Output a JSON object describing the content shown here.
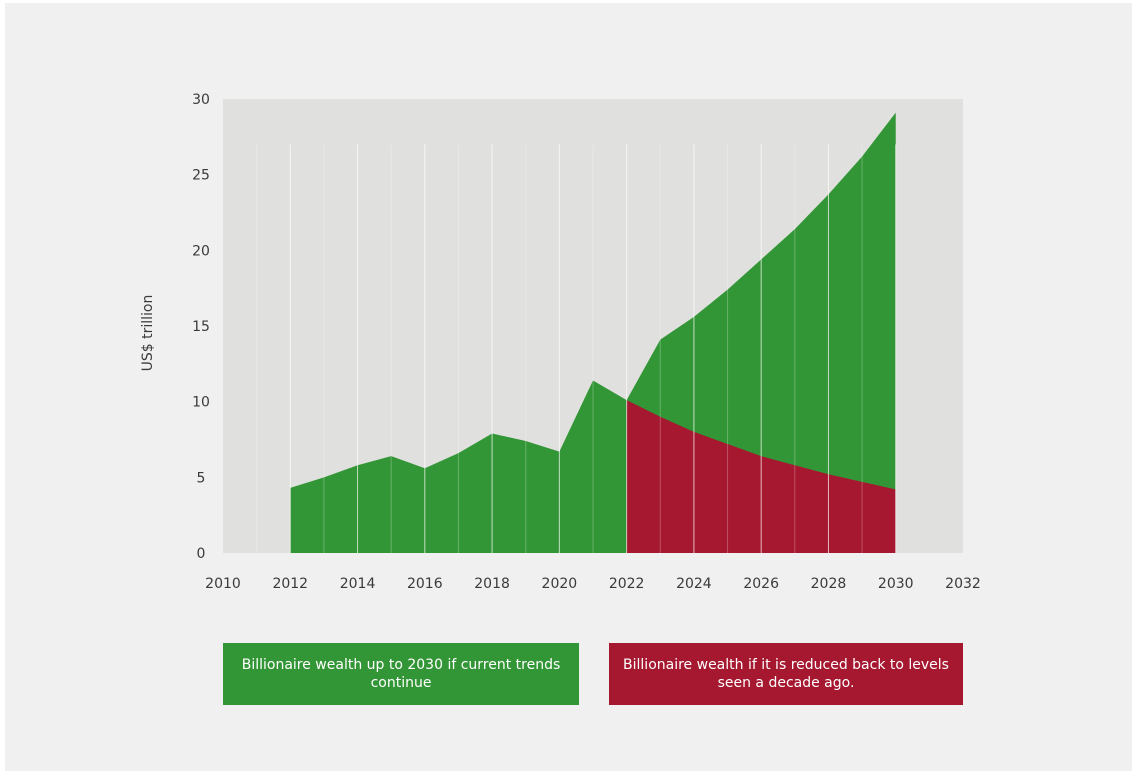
{
  "chart_data": {
    "type": "area",
    "ylabel": "US$ trillion",
    "xlim": [
      2010,
      2032
    ],
    "ylim": [
      0,
      30
    ],
    "x_ticks": [
      "2010",
      "2012",
      "2014",
      "2016",
      "2018",
      "2020",
      "2022",
      "2024",
      "2026",
      "2028",
      "2030",
      "2032"
    ],
    "y_ticks": [
      "0",
      "5",
      "10",
      "15",
      "20",
      "25",
      "30"
    ],
    "grid": "vertical lines at data years (white)",
    "plot_background": "#e0e0de",
    "series": [
      {
        "color": "#339636",
        "x": [
          2012,
          2013,
          2014,
          2015,
          2016,
          2017,
          2018,
          2019,
          2020,
          2021,
          2022,
          2023,
          2024,
          2025,
          2026,
          2027,
          2028,
          2029,
          2030
        ],
        "values": [
          4.3,
          5.0,
          5.8,
          6.4,
          5.6,
          6.6,
          7.9,
          7.4,
          6.7,
          11.4,
          10.1,
          14.1,
          15.6,
          17.4,
          19.4,
          21.4,
          23.7,
          26.2,
          29.1
        ]
      },
      {
        "color": "#a61830",
        "x": [
          2022,
          2023,
          2024,
          2025,
          2026,
          2027,
          2028,
          2029,
          2030
        ],
        "values": [
          10.1,
          9.0,
          8.0,
          7.2,
          6.4,
          5.8,
          5.2,
          4.7,
          4.2
        ]
      }
    ],
    "legend": [
      {
        "label": "Billionaire wealth up to 2030 if current trends continue",
        "color": "#339636"
      },
      {
        "label": "Billionaire wealth if it is reduced back to levels seen a decade ago.",
        "color": "#a61830"
      }
    ],
    "legend_placement": "bottom"
  }
}
